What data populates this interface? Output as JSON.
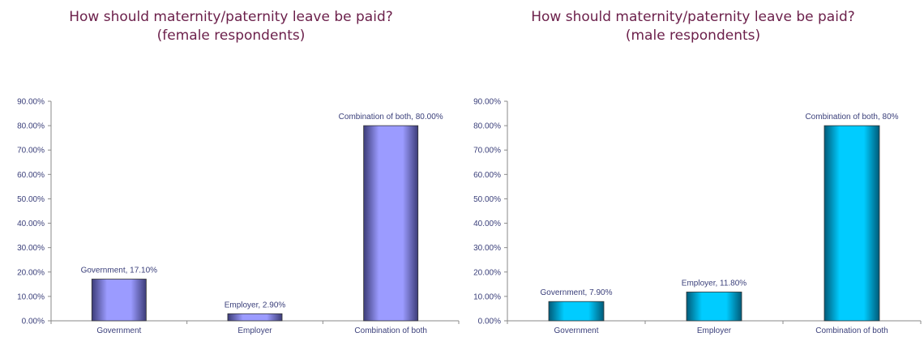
{
  "chart_data": [
    {
      "type": "bar",
      "title": [
        "How should maternity/paternity leave be paid?",
        "(female respondents)"
      ],
      "categories": [
        "Government",
        "Employer",
        "Combination of both"
      ],
      "values": [
        17.1,
        2.9,
        80.0
      ],
      "data_labels": [
        "Government, 17.10%",
        "Employer, 2.90%",
        "Combination of both, 80.00%"
      ],
      "y_ticks": [
        "0.00%",
        "10.00%",
        "20.00%",
        "30.00%",
        "40.00%",
        "50.00%",
        "60.00%",
        "70.00%",
        "80.00%",
        "90.00%"
      ],
      "ylim": [
        0,
        90
      ],
      "xlabel": "",
      "ylabel": "",
      "grid": false,
      "bar_color": "#9b9bff",
      "bar_color_dark": "#3c3c78"
    },
    {
      "type": "bar",
      "title": [
        "How should maternity/paternity leave be paid?",
        "(male respondents)"
      ],
      "categories": [
        "Government",
        "Employer",
        "Combination of both"
      ],
      "values": [
        7.9,
        11.8,
        80.0
      ],
      "data_labels": [
        "Government, 7.90%",
        "Employer, 11.80%",
        "Combination of both, 80%"
      ],
      "y_ticks": [
        "0.00%",
        "10.00%",
        "20.00%",
        "30.00%",
        "40.00%",
        "50.00%",
        "60.00%",
        "70.00%",
        "80.00%",
        "90.00%"
      ],
      "ylim": [
        0,
        90
      ],
      "xlabel": "",
      "ylabel": "",
      "grid": false,
      "bar_color": "#00ccff",
      "bar_color_dark": "#005a78"
    }
  ]
}
